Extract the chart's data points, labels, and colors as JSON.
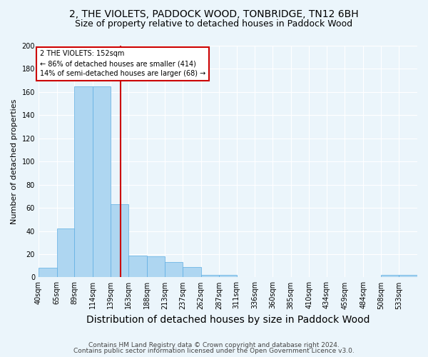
{
  "title1": "2, THE VIOLETS, PADDOCK WOOD, TONBRIDGE, TN12 6BH",
  "title2": "Size of property relative to detached houses in Paddock Wood",
  "xlabel": "Distribution of detached houses by size in Paddock Wood",
  "ylabel": "Number of detached properties",
  "footnote1": "Contains HM Land Registry data © Crown copyright and database right 2024.",
  "footnote2": "Contains public sector information licensed under the Open Government Licence v3.0.",
  "bins": [
    "40sqm",
    "65sqm",
    "89sqm",
    "114sqm",
    "139sqm",
    "163sqm",
    "188sqm",
    "213sqm",
    "237sqm",
    "262sqm",
    "287sqm",
    "311sqm",
    "336sqm",
    "360sqm",
    "385sqm",
    "410sqm",
    "434sqm",
    "459sqm",
    "484sqm",
    "508sqm",
    "533sqm"
  ],
  "values": [
    8,
    42,
    165,
    165,
    63,
    19,
    18,
    13,
    9,
    2,
    2,
    0,
    0,
    0,
    0,
    0,
    0,
    0,
    0,
    2,
    2
  ],
  "bar_color": "#AED6F1",
  "bar_edge_color": "#5DADE2",
  "property_label": "2 THE VIOLETS: 152sqm",
  "annotation_line1": "← 86% of detached houses are smaller (414)",
  "annotation_line2": "14% of semi-detached houses are larger (68) →",
  "vline_color": "#cc0000",
  "vline_position": 152,
  "annotation_box_color": "#ffffff",
  "annotation_box_edge": "#cc0000",
  "ylim": [
    0,
    200
  ],
  "yticks": [
    0,
    20,
    40,
    60,
    80,
    100,
    120,
    140,
    160,
    180,
    200
  ],
  "bg_color": "#EBF5FB",
  "axes_bg_color": "#EBF5FB",
  "grid_color": "#ffffff",
  "title1_fontsize": 10,
  "title2_fontsize": 9,
  "xlabel_fontsize": 10,
  "ylabel_fontsize": 8,
  "tick_fontsize": 7,
  "footnote_fontsize": 6.5,
  "annot_fontsize": 7,
  "bin_edges_num": [
    40,
    65,
    89,
    114,
    139,
    163,
    188,
    213,
    237,
    262,
    287,
    311,
    336,
    360,
    385,
    410,
    434,
    459,
    484,
    508,
    533
  ]
}
